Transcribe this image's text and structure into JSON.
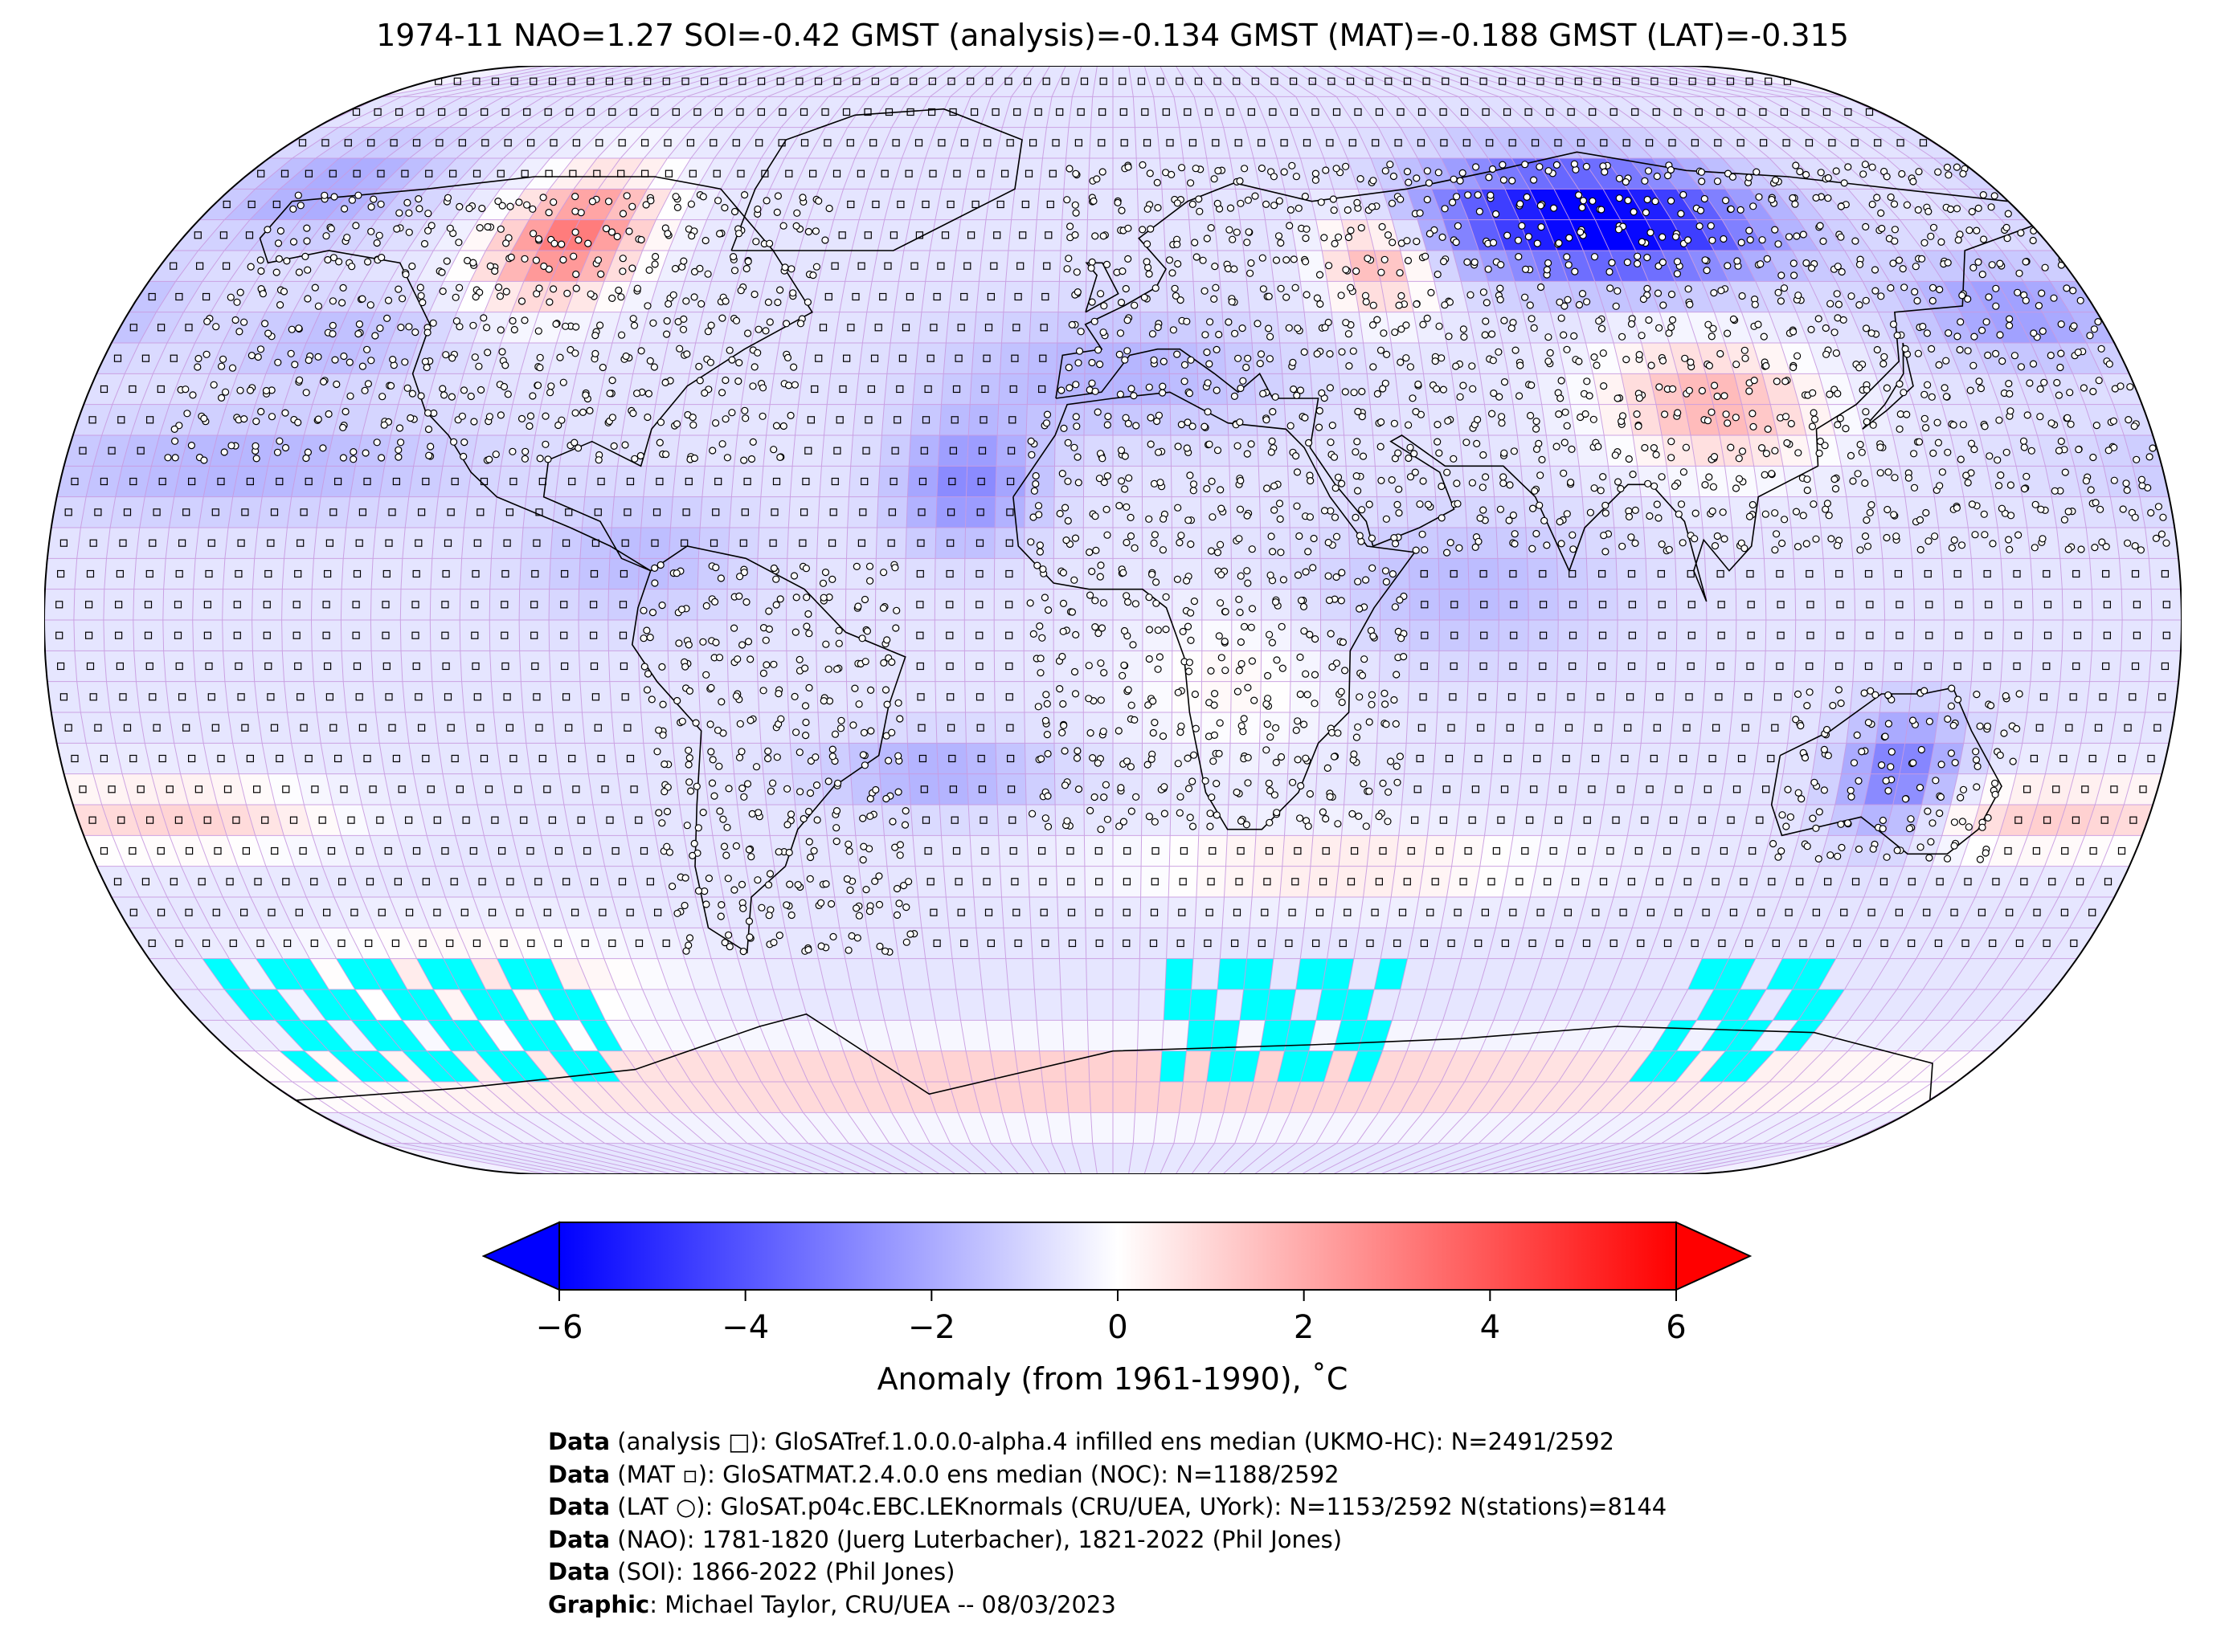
{
  "title": "1974-11 NAO=1.27 SOI=-0.42 GMST (analysis)=-0.134 GMST (MAT)=-0.188 GMST (LAT)=-0.315",
  "colorbar": {
    "ticks": [
      "−6",
      "−4",
      "−2",
      "0",
      "2",
      "4",
      "6"
    ],
    "tick_values": [
      -6,
      -4,
      -2,
      0,
      2,
      4,
      6
    ],
    "range": [
      -6,
      6
    ],
    "label": "Anomaly (from 1961-1990), ˚C",
    "colors": {
      "min": "#0000ff",
      "mid": "#ffffff",
      "max": "#ff0000"
    }
  },
  "map": {
    "projection": "robinson",
    "grid": "5x5 degree",
    "fill_missing_color": "#00ffff",
    "symbols": {
      "analysis": "square",
      "mat": "small-square",
      "lat": "circle"
    }
  },
  "credits": [
    {
      "label": "Data",
      "text": " (analysis □): GloSATref.1.0.0.0-alpha.4 infilled ens median (UKMO-HC): N=2491/2592"
    },
    {
      "label": "Data",
      "text": " (MAT ▫): GloSATMAT.2.4.0.0 ens median (NOC): N=1188/2592"
    },
    {
      "label": "Data",
      "text": " (LAT ○): GloSAT.p04c.EBC.LEKnormals (CRU/UEA, UYork): N=1153/2592 N(stations)=8144"
    },
    {
      "label": "Data",
      "text": " (NAO): 1781-1820 (Juerg Luterbacher), 1821-2022 (Phil Jones)"
    },
    {
      "label": "Data",
      "text": " (SOI): 1866-2022 (Phil Jones)"
    },
    {
      "label": "Graphic",
      "text": ": Michael Taylor, CRU/UEA -- 08/03/2023"
    }
  ]
}
